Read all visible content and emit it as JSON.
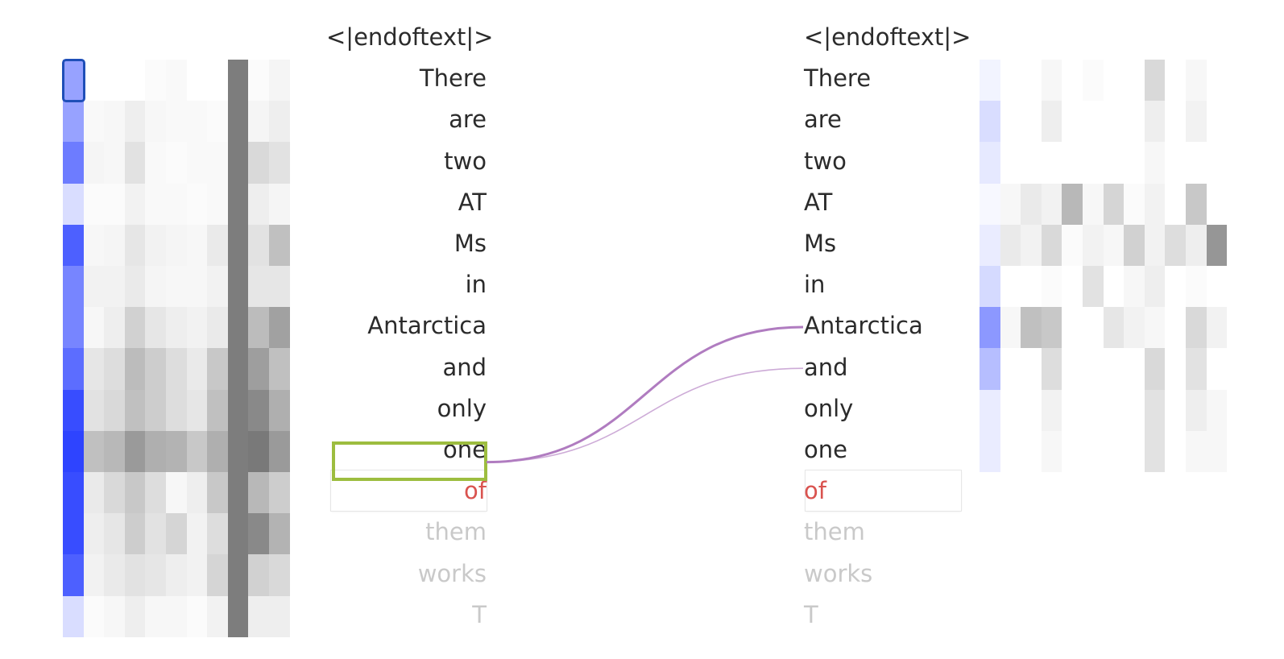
{
  "colors": {
    "weight_blue": "#2e44ff",
    "cell_gray": "#7a7a7a",
    "selected_border": "#9dbd3f",
    "selected_cell_border": "#1f4fb8",
    "link_color": "#b07cc0",
    "target_color": "#d9534f",
    "future_color": "#c9c9c9"
  },
  "left_tokens": [
    "<|endoftext|>",
    "There",
    "are",
    "two",
    "AT",
    "Ms",
    "in",
    "Antarctica",
    "and",
    "only",
    "one",
    "of",
    "them",
    "works",
    "T"
  ],
  "right_tokens": [
    "<|endoftext|>",
    "There",
    "are",
    "two",
    "AT",
    "Ms",
    "in",
    "Antarctica",
    "and",
    "only",
    "one",
    "of",
    "them",
    "works",
    "T"
  ],
  "selected_token_index": 10,
  "target_token_index": 11,
  "left_blue_column": [
    0.5,
    0.5,
    0.7,
    0.18,
    0.85,
    0.65,
    0.65,
    0.78,
    0.95,
    1.0,
    0.95,
    0.95,
    0.85,
    0.18
  ],
  "left_gray_matrix": [
    [
      0.0,
      0.0,
      0.0,
      0.02,
      0.03,
      0.0,
      0.0,
      0.0,
      0.02,
      0.05
    ],
    [
      0.03,
      0.04,
      0.08,
      0.04,
      0.03,
      0.03,
      0.02,
      0.0,
      0.05,
      0.08
    ],
    [
      0.05,
      0.04,
      0.14,
      0.03,
      0.02,
      0.03,
      0.03,
      0.0,
      0.18,
      0.14
    ],
    [
      0.02,
      0.02,
      0.06,
      0.03,
      0.03,
      0.02,
      0.03,
      0.0,
      0.08,
      0.05
    ],
    [
      0.04,
      0.05,
      0.12,
      0.06,
      0.05,
      0.04,
      0.1,
      0.0,
      0.14,
      0.3
    ],
    [
      0.06,
      0.06,
      0.1,
      0.05,
      0.04,
      0.04,
      0.06,
      0.0,
      0.12,
      0.12
    ],
    [
      0.04,
      0.08,
      0.22,
      0.12,
      0.08,
      0.06,
      0.1,
      0.0,
      0.32,
      0.45
    ],
    [
      0.12,
      0.16,
      0.32,
      0.24,
      0.16,
      0.1,
      0.26,
      0.0,
      0.46,
      0.3
    ],
    [
      0.14,
      0.18,
      0.3,
      0.24,
      0.16,
      0.12,
      0.3,
      0.0,
      0.56,
      0.38
    ],
    [
      0.3,
      0.34,
      0.48,
      0.38,
      0.36,
      0.26,
      0.38,
      0.0,
      0.64,
      0.48
    ],
    [
      0.1,
      0.18,
      0.26,
      0.16,
      0.04,
      0.08,
      0.26,
      0.0,
      0.34,
      0.24
    ],
    [
      0.08,
      0.12,
      0.24,
      0.14,
      0.2,
      0.06,
      0.16,
      0.0,
      0.56,
      0.36
    ],
    [
      0.06,
      0.1,
      0.14,
      0.12,
      0.08,
      0.06,
      0.2,
      0.0,
      0.22,
      0.18
    ],
    [
      0.02,
      0.04,
      0.08,
      0.04,
      0.04,
      0.02,
      0.06,
      0.0,
      0.08,
      0.08
    ]
  ],
  "left_dark_column": 0.62,
  "right_blue_column": [
    0.06,
    0.18,
    0.12,
    0.04,
    0.1,
    0.2,
    0.55,
    0.35,
    0.1,
    0.1
  ],
  "right_gray_matrix": [
    [
      0.0,
      0.0,
      0.04,
      0.0,
      0.02,
      0.0,
      0.0,
      0.18,
      0.0,
      0.04,
      0.0
    ],
    [
      0.0,
      0.0,
      0.08,
      0.0,
      0.0,
      0.0,
      0.0,
      0.08,
      0.0,
      0.06,
      0.0
    ],
    [
      0.0,
      0.0,
      0.0,
      0.0,
      0.0,
      0.0,
      0.0,
      0.04,
      0.0,
      0.0,
      0.0
    ],
    [
      0.04,
      0.1,
      0.06,
      0.34,
      0.04,
      0.2,
      0.02,
      0.06,
      0.0,
      0.26,
      0.0
    ],
    [
      0.1,
      0.06,
      0.18,
      0.02,
      0.06,
      0.04,
      0.22,
      0.06,
      0.16,
      0.08,
      0.5
    ],
    [
      0.0,
      0.0,
      0.02,
      0.0,
      0.14,
      0.0,
      0.04,
      0.08,
      0.0,
      0.02,
      0.0
    ],
    [
      0.04,
      0.3,
      0.26,
      0.0,
      0.0,
      0.12,
      0.06,
      0.04,
      0.0,
      0.18,
      0.06
    ],
    [
      0.0,
      0.0,
      0.16,
      0.0,
      0.0,
      0.0,
      0.0,
      0.18,
      0.0,
      0.14,
      0.0
    ],
    [
      0.0,
      0.0,
      0.06,
      0.0,
      0.0,
      0.0,
      0.0,
      0.14,
      0.0,
      0.08,
      0.04
    ],
    [
      0.0,
      0.0,
      0.04,
      0.0,
      0.0,
      0.0,
      0.0,
      0.14,
      0.0,
      0.04,
      0.04
    ]
  ],
  "links": [
    {
      "from_index": 10,
      "to_index": 7,
      "weight": 1.0
    },
    {
      "from_index": 10,
      "to_index": 8,
      "weight": 0.35
    }
  ]
}
